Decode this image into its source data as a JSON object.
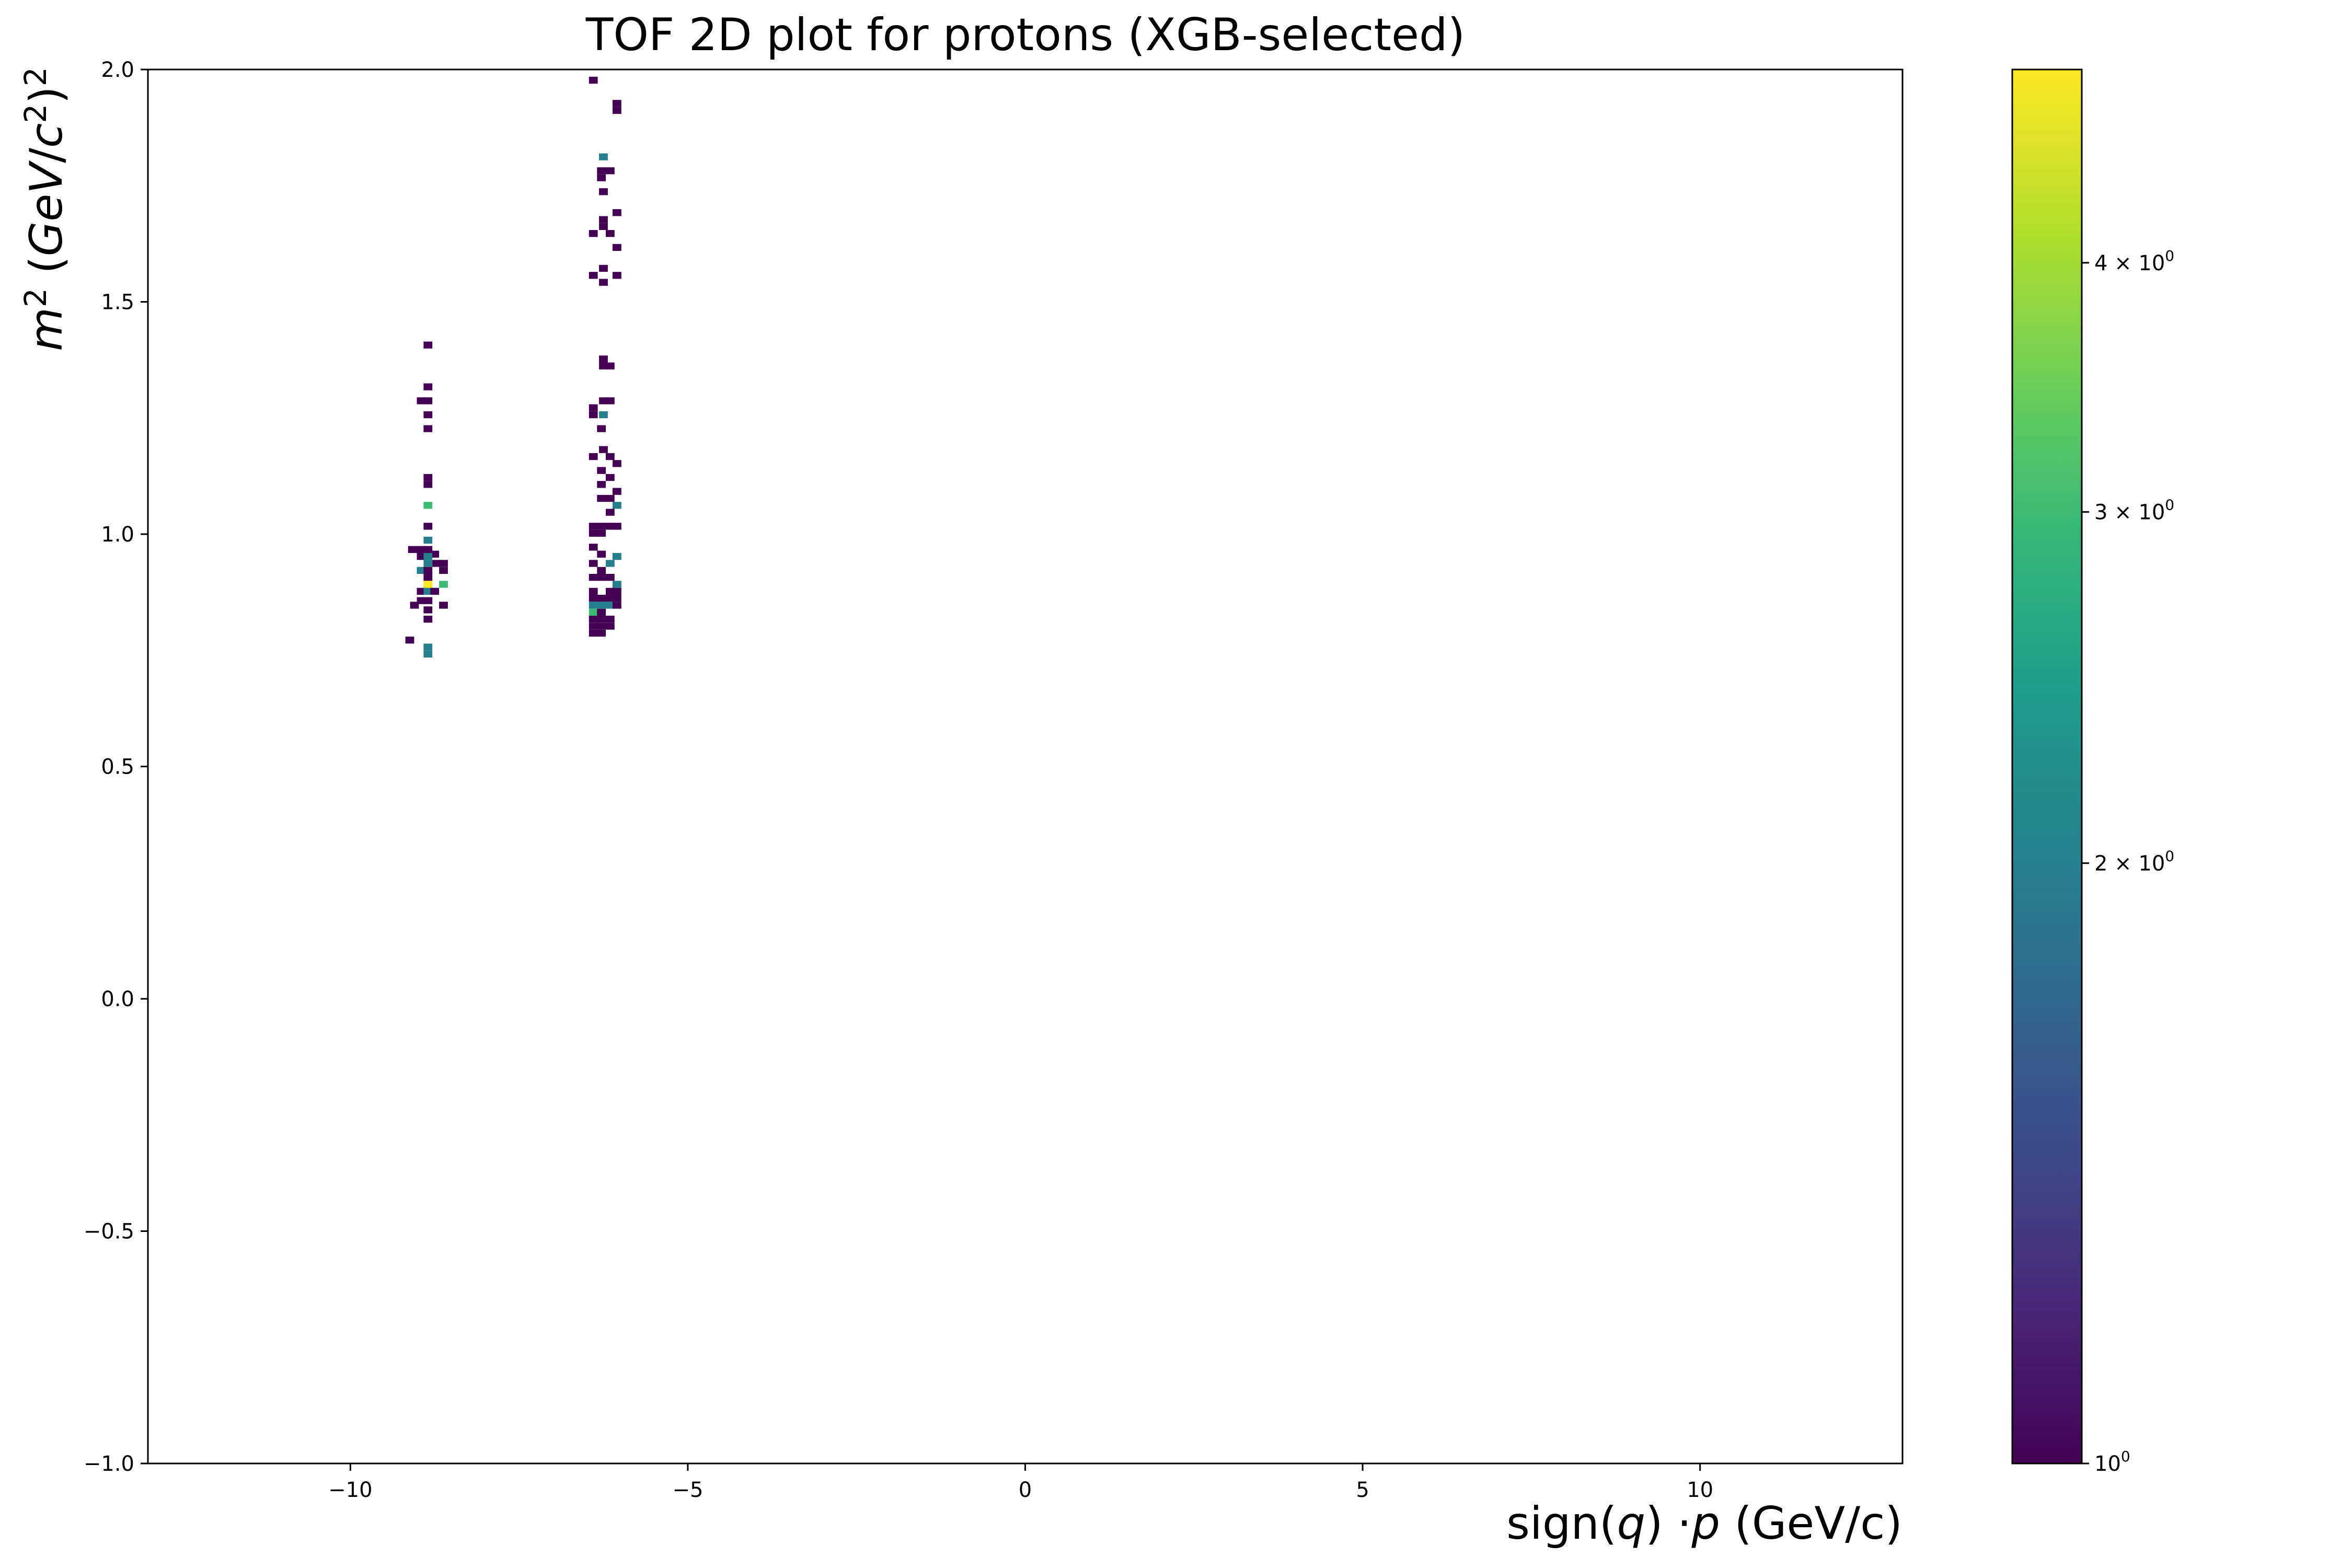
{
  "chart_data": {
    "type": "heatmap",
    "title": "TOF 2D plot for protons (XGB-selected)",
    "xlabel": "sign(q) ·p (GeV/c)",
    "ylabel": "m² (GeV/c²)²",
    "xlim": [
      -13,
      13
    ],
    "ylim": [
      -1.0,
      2.0
    ],
    "x_ticks": [
      -10,
      -5,
      0,
      5,
      10
    ],
    "x_tick_labels": [
      "−10",
      "−5",
      "0",
      "5",
      "10"
    ],
    "y_ticks": [
      -1.0,
      -0.5,
      0.0,
      0.5,
      1.0,
      1.5,
      2.0
    ],
    "y_tick_labels": [
      "−1.0",
      "−0.5",
      "0.0",
      "0.5",
      "1.0",
      "1.5",
      "2.0"
    ],
    "grid": false,
    "colorbar": {
      "scale": "log",
      "colormap": "viridis",
      "range": [
        1,
        5
      ],
      "ticks": [
        1,
        2,
        3,
        4
      ],
      "tick_labels": [
        {
          "base": "10",
          "exp": "0"
        },
        {
          "prefix": "2 × ",
          "base": "10",
          "exp": "0"
        },
        {
          "prefix": "3 × ",
          "base": "10",
          "exp": "0"
        },
        {
          "prefix": "4 × ",
          "base": "10",
          "exp": "0"
        }
      ]
    },
    "bins": {
      "x_width": 0.13,
      "y_width": 0.015
    },
    "cells": [
      [
        -8.85,
        1.407,
        1
      ],
      [
        -8.85,
        1.317,
        1
      ],
      [
        -8.95,
        1.287,
        1
      ],
      [
        -8.85,
        1.287,
        1
      ],
      [
        -8.85,
        1.257,
        1
      ],
      [
        -8.85,
        1.227,
        1
      ],
      [
        -8.85,
        1.122,
        1
      ],
      [
        -8.85,
        1.107,
        1
      ],
      [
        -8.85,
        1.062,
        3
      ],
      [
        -8.85,
        1.017,
        1
      ],
      [
        -8.85,
        0.987,
        2
      ],
      [
        -9.08,
        0.967,
        1
      ],
      [
        -8.95,
        0.967,
        1
      ],
      [
        -8.85,
        0.967,
        1
      ],
      [
        -8.75,
        0.957,
        1
      ],
      [
        -8.95,
        0.952,
        1
      ],
      [
        -8.85,
        0.952,
        2
      ],
      [
        -8.85,
        0.937,
        2
      ],
      [
        -8.72,
        0.937,
        1
      ],
      [
        -8.62,
        0.937,
        1
      ],
      [
        -8.95,
        0.922,
        2
      ],
      [
        -8.85,
        0.922,
        1
      ],
      [
        -8.62,
        0.922,
        1
      ],
      [
        -8.85,
        0.907,
        1
      ],
      [
        -8.85,
        0.892,
        5
      ],
      [
        -8.62,
        0.892,
        3
      ],
      [
        -8.95,
        0.877,
        1
      ],
      [
        -8.85,
        0.877,
        2
      ],
      [
        -8.75,
        0.877,
        1
      ],
      [
        -8.95,
        0.857,
        1
      ],
      [
        -8.85,
        0.857,
        1
      ],
      [
        -9.05,
        0.847,
        1
      ],
      [
        -8.62,
        0.847,
        1
      ],
      [
        -8.85,
        0.837,
        1
      ],
      [
        -8.85,
        0.817,
        1
      ],
      [
        -9.12,
        0.772,
        1
      ],
      [
        -8.85,
        0.757,
        2
      ],
      [
        -8.85,
        0.742,
        2
      ],
      [
        -6.4,
        1.977,
        1
      ],
      [
        -6.05,
        1.927,
        1
      ],
      [
        -6.05,
        1.912,
        1
      ],
      [
        -6.25,
        1.812,
        2
      ],
      [
        -6.28,
        1.782,
        1
      ],
      [
        -6.15,
        1.782,
        1
      ],
      [
        -6.28,
        1.767,
        1
      ],
      [
        -6.25,
        1.737,
        1
      ],
      [
        -6.05,
        1.692,
        1
      ],
      [
        -6.25,
        1.677,
        1
      ],
      [
        -6.25,
        1.662,
        1
      ],
      [
        -6.4,
        1.647,
        1
      ],
      [
        -6.15,
        1.647,
        1
      ],
      [
        -6.05,
        1.617,
        1
      ],
      [
        -6.25,
        1.572,
        1
      ],
      [
        -6.4,
        1.557,
        1
      ],
      [
        -6.05,
        1.557,
        1
      ],
      [
        -6.25,
        1.542,
        1
      ],
      [
        -6.25,
        1.377,
        1
      ],
      [
        -6.15,
        1.362,
        1
      ],
      [
        -6.25,
        1.362,
        1
      ],
      [
        -6.25,
        1.287,
        1
      ],
      [
        -6.15,
        1.287,
        1
      ],
      [
        -6.4,
        1.272,
        1
      ],
      [
        -6.4,
        1.257,
        1
      ],
      [
        -6.25,
        1.257,
        2
      ],
      [
        -6.28,
        1.227,
        1
      ],
      [
        -6.25,
        1.182,
        1
      ],
      [
        -6.4,
        1.167,
        1
      ],
      [
        -6.15,
        1.167,
        1
      ],
      [
        -6.05,
        1.152,
        1
      ],
      [
        -6.28,
        1.137,
        1
      ],
      [
        -6.15,
        1.122,
        1
      ],
      [
        -6.28,
        1.107,
        1
      ],
      [
        -6.05,
        1.092,
        1
      ],
      [
        -6.28,
        1.077,
        1
      ],
      [
        -6.15,
        1.077,
        1
      ],
      [
        -6.05,
        1.062,
        2
      ],
      [
        -6.15,
        1.047,
        1
      ],
      [
        -6.4,
        1.017,
        1
      ],
      [
        -6.28,
        1.017,
        1
      ],
      [
        -6.15,
        1.017,
        1
      ],
      [
        -6.05,
        1.017,
        1
      ],
      [
        -6.4,
        1.002,
        1
      ],
      [
        -6.28,
        1.002,
        1
      ],
      [
        -6.4,
        0.972,
        1
      ],
      [
        -6.28,
        0.957,
        1
      ],
      [
        -6.05,
        0.952,
        2
      ],
      [
        -6.4,
        0.937,
        1
      ],
      [
        -6.15,
        0.937,
        2
      ],
      [
        -6.28,
        0.922,
        1
      ],
      [
        -6.4,
        0.907,
        1
      ],
      [
        -6.28,
        0.907,
        1
      ],
      [
        -6.15,
        0.907,
        1
      ],
      [
        -6.05,
        0.892,
        2
      ],
      [
        -6.4,
        0.877,
        1
      ],
      [
        -6.15,
        0.877,
        1
      ],
      [
        -6.05,
        0.877,
        1
      ],
      [
        -6.4,
        0.862,
        1
      ],
      [
        -6.28,
        0.862,
        1
      ],
      [
        -6.15,
        0.862,
        1
      ],
      [
        -6.05,
        0.862,
        1
      ],
      [
        -6.4,
        0.847,
        2
      ],
      [
        -6.28,
        0.847,
        2
      ],
      [
        -6.15,
        0.847,
        2
      ],
      [
        -6.05,
        0.847,
        1
      ],
      [
        -6.4,
        0.832,
        3
      ],
      [
        -6.28,
        0.832,
        1
      ],
      [
        -6.4,
        0.817,
        1
      ],
      [
        -6.28,
        0.817,
        1
      ],
      [
        -6.15,
        0.817,
        1
      ],
      [
        -6.4,
        0.802,
        1
      ],
      [
        -6.28,
        0.802,
        1
      ],
      [
        -6.15,
        0.802,
        1
      ],
      [
        -6.4,
        0.787,
        1
      ],
      [
        -6.28,
        0.787,
        1
      ]
    ]
  }
}
